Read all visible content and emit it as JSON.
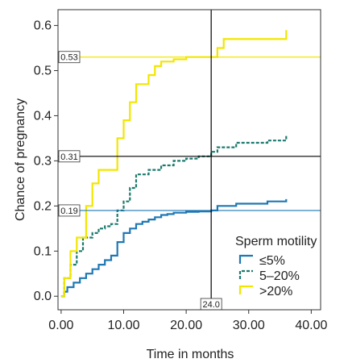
{
  "chart_data": {
    "type": "line",
    "xlabel": "Time in months",
    "ylabel": "Chance of pregnancy",
    "xlim": [
      -0.5,
      41.5
    ],
    "ylim": [
      -0.03,
      0.635
    ],
    "xticks": [
      0,
      10,
      20,
      30,
      40
    ],
    "xtick_labels": [
      "0.00",
      "10.00",
      "20.00",
      "30.00",
      "40.00"
    ],
    "yticks": [
      0,
      0.1,
      0.2,
      0.3,
      0.4,
      0.5,
      0.6
    ],
    "ytick_labels": [
      "0.0",
      "0.1",
      "0.2",
      "0.3",
      "0.4",
      "0.5",
      "0.6"
    ],
    "grid": false,
    "legend": {
      "title": "Sperm motility",
      "placement": "bottom-right"
    },
    "series": [
      {
        "name": "≤5%",
        "color": "#1f78b4",
        "dash": "solid",
        "x": [
          0,
          0.5,
          1,
          2,
          3,
          4,
          5,
          6,
          7,
          8,
          9,
          10,
          11,
          12,
          13,
          14,
          15,
          16,
          17,
          18,
          20,
          22,
          24,
          25,
          28,
          33,
          36
        ],
        "y": [
          0,
          0.01,
          0.02,
          0.03,
          0.04,
          0.05,
          0.06,
          0.07,
          0.08,
          0.09,
          0.12,
          0.14,
          0.15,
          0.16,
          0.165,
          0.17,
          0.175,
          0.18,
          0.182,
          0.185,
          0.187,
          0.188,
          0.19,
          0.2,
          0.205,
          0.21,
          0.215
        ]
      },
      {
        "name": "5–20%",
        "color": "#1b7a6e",
        "dash": "dashed",
        "x": [
          0,
          0.5,
          1.5,
          2.5,
          3.5,
          5,
          6,
          7,
          8,
          9,
          10,
          11,
          12,
          14,
          16,
          18,
          20,
          22,
          24,
          25,
          28,
          33,
          36
        ],
        "y": [
          0,
          0.04,
          0.07,
          0.1,
          0.13,
          0.14,
          0.15,
          0.155,
          0.16,
          0.19,
          0.21,
          0.24,
          0.27,
          0.28,
          0.29,
          0.3,
          0.305,
          0.31,
          0.32,
          0.33,
          0.34,
          0.345,
          0.355
        ]
      },
      {
        "name": ">20%",
        "color": "#f2e600",
        "dash": "solid",
        "x": [
          0,
          0.5,
          1.5,
          2.5,
          4,
          5,
          6,
          9,
          10,
          11,
          12,
          14,
          15,
          16,
          18,
          20,
          22,
          24,
          25,
          26,
          36
        ],
        "y": [
          0,
          0.04,
          0.1,
          0.13,
          0.2,
          0.25,
          0.28,
          0.35,
          0.39,
          0.43,
          0.47,
          0.49,
          0.51,
          0.52,
          0.525,
          0.53,
          0.53,
          0.53,
          0.55,
          0.57,
          0.59
        ]
      }
    ],
    "reference_lines": {
      "vertical": {
        "x": 24,
        "label": "24.0",
        "color": "#000000"
      },
      "horizontal": [
        {
          "y": 0.53,
          "label": "0.53",
          "color": "#f2e600"
        },
        {
          "y": 0.31,
          "label": "0.31",
          "color": "#000000"
        },
        {
          "y": 0.19,
          "label": "0.19",
          "color": "#1f78b4"
        }
      ]
    }
  }
}
